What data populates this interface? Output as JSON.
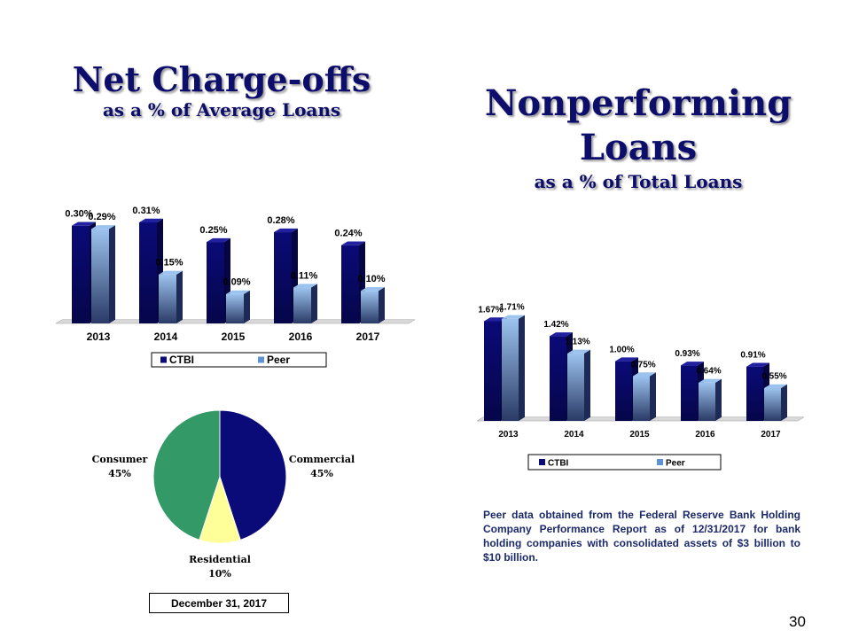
{
  "left_title": {
    "line1": "Net Charge-offs",
    "line2": "as a % of Average Loans"
  },
  "right_title": {
    "line1": "Nonperforming",
    "line2": "Loans",
    "line3": "as a % of Total Loans"
  },
  "colors": {
    "ctbi": "#0a0a78",
    "peer": "#5d93d6",
    "title": "#0d0d6b",
    "commercial": "#0a0a78",
    "residential": "#ffff99",
    "consumer": "#339966"
  },
  "chart_data": [
    {
      "type": "bar",
      "title": "Net Charge-offs as a % of Average Loans",
      "categories": [
        "2013",
        "2014",
        "2015",
        "2016",
        "2017"
      ],
      "series": [
        {
          "name": "CTBI",
          "values": [
            0.3,
            0.31,
            0.25,
            0.28,
            0.24
          ],
          "labels": [
            "0.30%",
            "0.31%",
            "0.25%",
            "0.28%",
            "0.24%"
          ]
        },
        {
          "name": "Peer",
          "values": [
            0.29,
            0.15,
            0.09,
            0.11,
            0.1
          ],
          "labels": [
            "0.29%",
            "0.15%",
            "0.09%",
            "0.11%",
            "0.10%"
          ]
        }
      ],
      "ylim": [
        0,
        0.35
      ],
      "legend": "bottom",
      "grid": false
    },
    {
      "type": "bar",
      "title": "Nonperforming Loans as a % of Total Loans",
      "categories": [
        "2013",
        "2014",
        "2015",
        "2016",
        "2017"
      ],
      "series": [
        {
          "name": "CTBI",
          "values": [
            1.67,
            1.42,
            1.0,
            0.93,
            0.91
          ],
          "labels": [
            "1.67%",
            "1.42%",
            "1.00%",
            "0.93%",
            "0.91%"
          ]
        },
        {
          "name": "Peer",
          "values": [
            1.71,
            1.13,
            0.75,
            0.64,
            0.55
          ],
          "labels": [
            "1.71%",
            "1.13%",
            "0.75%",
            "0.64%",
            "0.55%"
          ]
        }
      ],
      "ylim": [
        0,
        1.9
      ],
      "legend": "bottom",
      "grid": false
    },
    {
      "type": "pie",
      "slices": [
        {
          "name": "Commercial",
          "value": 45,
          "label": "45%"
        },
        {
          "name": "Residential",
          "value": 10,
          "label": "10%"
        },
        {
          "name": "Consumer",
          "value": 45,
          "label": "45%"
        }
      ]
    }
  ],
  "date_box": "December 31, 2017",
  "footnote": "Peer data obtained from the Federal Reserve Bank Holding Company Performance Report as of 12/31/2017 for bank holding companies with consolidated assets of $3 billion to $10 billion.",
  "page_number": "30"
}
